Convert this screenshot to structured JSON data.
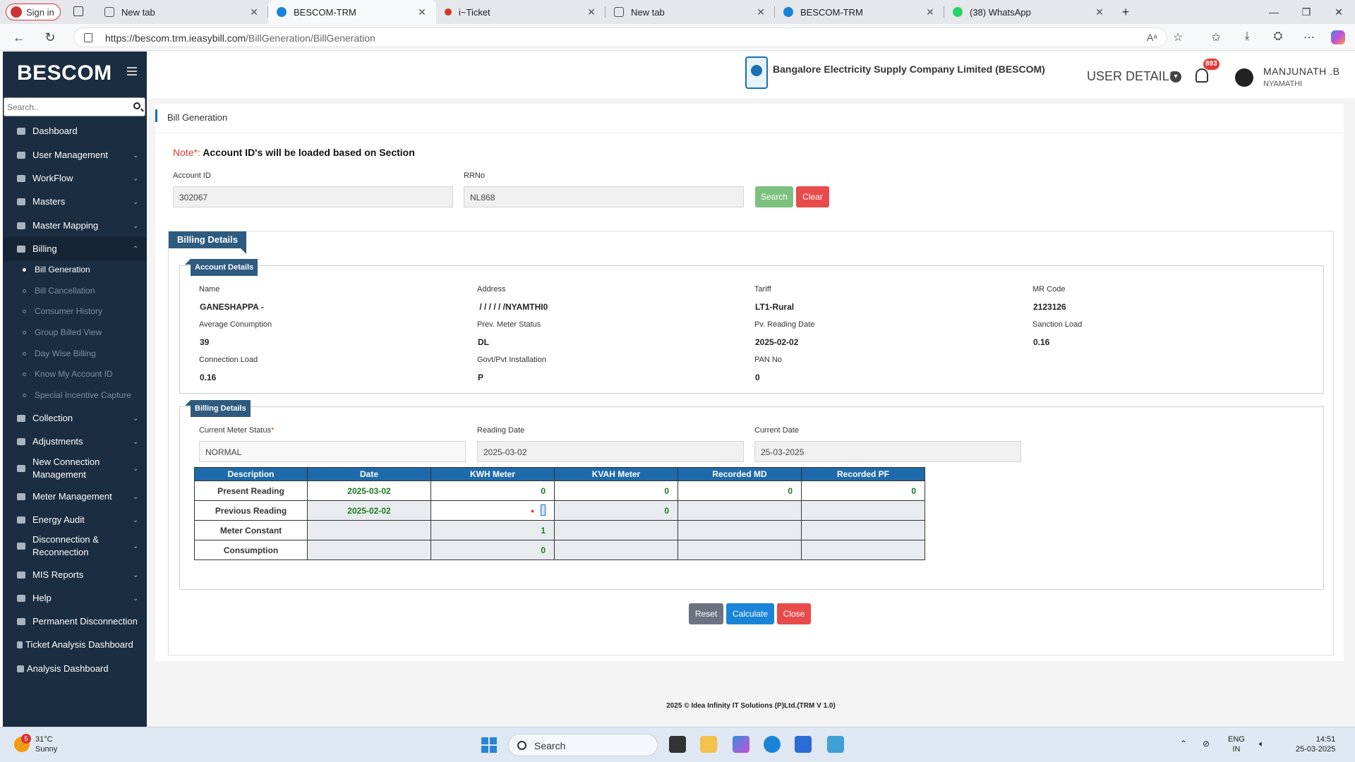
{
  "browser": {
    "signin_label": "Sign in",
    "tabs": [
      {
        "title": "New tab",
        "icon": "new-tab-icon"
      },
      {
        "title": "BESCOM-TRM",
        "icon": "edge-page-icon"
      },
      {
        "title": "i~Ticket",
        "icon": "ticket-icon"
      },
      {
        "title": "New tab",
        "icon": "new-tab-icon"
      },
      {
        "title": "BESCOM-TRM",
        "icon": "edge-page-icon"
      },
      {
        "title": "(38) WhatsApp",
        "icon": "whatsapp-icon"
      }
    ],
    "new_tab_symbol": "+",
    "url_host": "https://bescom.trm.ieasybill.com",
    "url_path": "/BillGeneration/BillGeneration"
  },
  "sidebar": {
    "brand": "BESCOM",
    "search_placeholder": "Search..",
    "items": [
      {
        "label": "Dashboard",
        "icon": "dashboard-icon"
      },
      {
        "label": "User Management",
        "icon": "user-icon"
      },
      {
        "label": "WorkFlow",
        "icon": "workflow-icon"
      },
      {
        "label": "Masters",
        "icon": "masters-icon"
      },
      {
        "label": "Master Mapping",
        "icon": "mapping-icon"
      },
      {
        "label": "Billing",
        "icon": "monitor-icon"
      },
      {
        "label": "Collection",
        "icon": "list-icon"
      },
      {
        "label": "Adjustments",
        "icon": "adjust-icon"
      },
      {
        "label": "New Connection Management",
        "icon": "connection-icon"
      },
      {
        "label": "Meter Management",
        "icon": "list-icon"
      },
      {
        "label": "Energy Audit",
        "icon": "audit-icon"
      },
      {
        "label": "Disconnection & Reconnection",
        "icon": "link-icon"
      },
      {
        "label": "MIS Reports",
        "icon": "chart-icon"
      },
      {
        "label": "Help",
        "icon": "help-icon"
      },
      {
        "label": "Permanent Disconnection",
        "icon": "link-icon"
      },
      {
        "label": "Ticket Analysis Dashboard",
        "icon": "ticket-icon"
      },
      {
        "label": "Analysis Dashboard",
        "icon": "analysis-icon"
      }
    ],
    "billing_sub": [
      "Bill Generation",
      "Bill Cancellation",
      "Consumer History",
      "Group Billed View",
      "Day Wise Billing",
      "Know My Account ID",
      "Special Incentive Capture"
    ]
  },
  "header": {
    "company": "Bangalore Electricity Supply Company Limited (BESCOM)",
    "user_details": "USER DETAILS",
    "notif_count": "893",
    "user_name": "MANJUNATH .B",
    "user_location": "NYAMATHI"
  },
  "page": {
    "breadcrumb": "Bill Generation",
    "note_prefix": "Note*:",
    "note_text": "Account ID's will be loaded based on Section",
    "account_id_label": "Account ID",
    "account_id_value": "302067",
    "rrno_label": "RRNo",
    "rrno_value": "NL868",
    "search_btn": "Search",
    "clear_btn": "Clear",
    "billing_details_title": "Billing Details",
    "account_details_title": "Account Details",
    "account_fields": [
      {
        "label": "Name",
        "value": "GANESHAPPA -"
      },
      {
        "label": "Address",
        "value": " / / / / / /NYAMTHI0"
      },
      {
        "label": "Tariff",
        "value": "LT1-Rural"
      },
      {
        "label": "MR Code",
        "value": "2123126"
      },
      {
        "label": "Average Conumption",
        "value": "39"
      },
      {
        "label": "Prev. Meter Status",
        "value": "DL"
      },
      {
        "label": "Pv. Reading Date",
        "value": "2025-02-02"
      },
      {
        "label": "Sanction Load",
        "value": "0.16"
      },
      {
        "label": "Connection Load",
        "value": "0.16"
      },
      {
        "label": "Govt/Pvt Installation",
        "value": "P"
      },
      {
        "label": "PAN No",
        "value": "0"
      }
    ],
    "billing_sub_title": "Billing Details",
    "meter_status_label": "Current Meter Status",
    "meter_status_required": "*",
    "meter_status_value": "NORMAL",
    "reading_date_label": "Reading Date",
    "reading_date_value": "2025-03-02",
    "current_date_label": "Current Date",
    "current_date_value": "25-03-2025",
    "table": {
      "headers": [
        "Description",
        "Date",
        "KWH Meter",
        "KVAH Meter",
        "Recorded MD",
        "Recorded PF"
      ],
      "rows": [
        [
          "Present Reading",
          "2025-03-02",
          "0",
          "0",
          "0",
          "0"
        ],
        [
          "Previous Reading",
          "2025-02-02",
          "",
          "0",
          "",
          ""
        ],
        [
          "Meter Constant",
          "",
          "1",
          "",
          "",
          ""
        ],
        [
          "Consumption",
          "",
          "0",
          "",
          "",
          ""
        ]
      ]
    },
    "reset_btn": "Reset",
    "calculate_btn": "Calculate",
    "close_btn": "Close"
  },
  "footer": "2025 © Idea Infinity IT Solutions (P)Ltd.(TRM V 1.0)",
  "taskbar": {
    "temp": "31°C",
    "weather": "Sunny",
    "weather_badge": "5",
    "search_label": "Search",
    "lang1": "ENG",
    "lang2": "IN",
    "time": "14:51",
    "date": "25-03-2025"
  },
  "colors": {
    "sidebar_bg": "#1b2d41",
    "table_header": "#1f6aa9",
    "search_btn": "#7cc17e",
    "clear_btn": "#e84b4b",
    "reset_btn": "#6c7280",
    "calculate_btn": "#1a84d8",
    "close_btn": "#e84b4b"
  }
}
